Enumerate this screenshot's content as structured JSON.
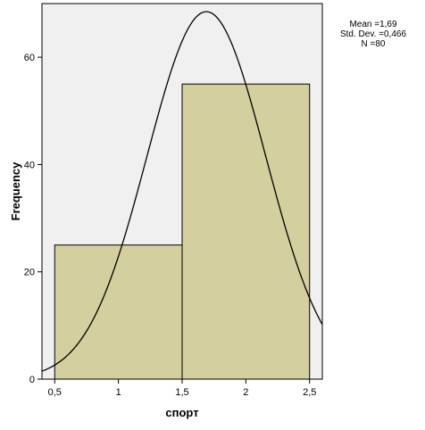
{
  "chart_data": {
    "type": "bar",
    "subtype": "histogram",
    "bins": [
      {
        "from": 0.5,
        "to": 1.5,
        "frequency": 25
      },
      {
        "from": 1.5,
        "to": 2.5,
        "frequency": 55
      }
    ],
    "normal_curve": {
      "mean": 1.69,
      "sd": 0.466,
      "n": 80,
      "bin_width": 1.0
    },
    "xlabel": "спорт",
    "ylabel": "Frequency",
    "xlim": [
      0.4,
      2.6
    ],
    "ylim": [
      0,
      70
    ],
    "x_ticks": [
      {
        "value": 0.5,
        "label": "0,5"
      },
      {
        "value": 1,
        "label": "1"
      },
      {
        "value": 1.5,
        "label": "1,5"
      },
      {
        "value": 2,
        "label": "2"
      },
      {
        "value": 2.5,
        "label": "2,5"
      }
    ],
    "y_ticks": [
      {
        "value": 0,
        "label": "0"
      },
      {
        "value": 20,
        "label": "20"
      },
      {
        "value": 40,
        "label": "40"
      },
      {
        "value": 60,
        "label": "60"
      }
    ],
    "stats": {
      "mean": "Mean =1,69",
      "sd": "Std. Dev. =0,466",
      "n": "N =80"
    },
    "grid": false,
    "colors": {
      "plot_background": "#f0f0f0",
      "bar_fill": "#d3cf9e",
      "bar_stroke": "#000000",
      "curve": "#000000"
    }
  }
}
